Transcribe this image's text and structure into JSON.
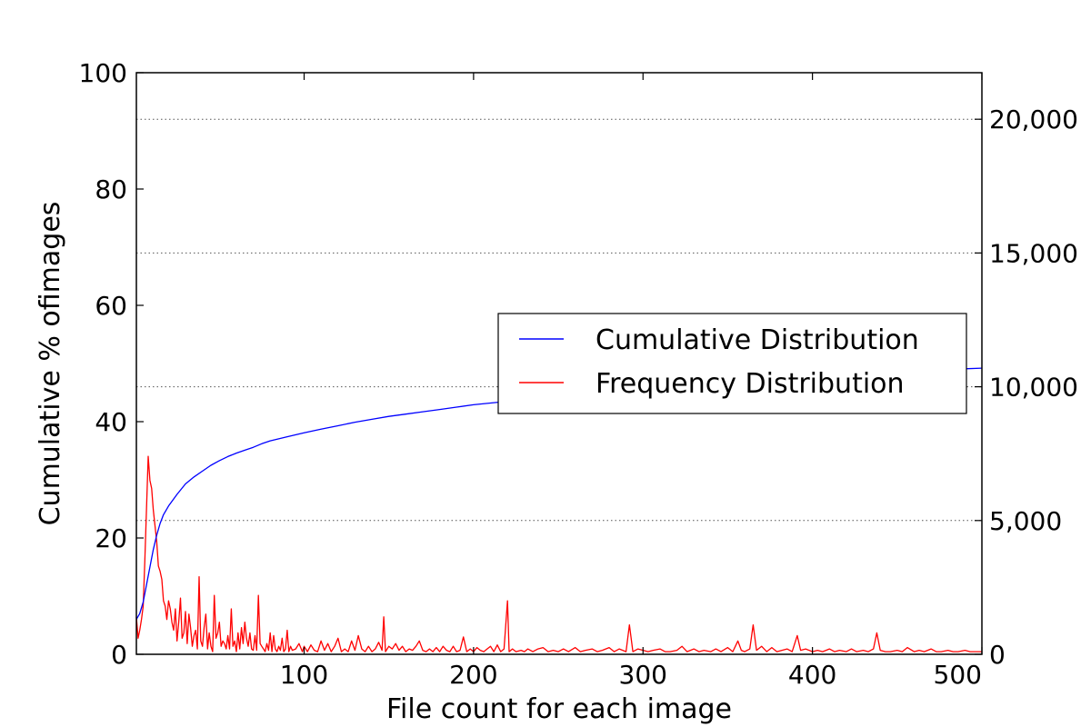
{
  "chart_data": {
    "type": "line",
    "xlabel": "File count for each image",
    "ylabel": "Cumulative % ofimages",
    "xlim": [
      1,
      500
    ],
    "ylim": [
      0,
      100
    ],
    "y2lim": [
      0,
      21739
    ],
    "xticks": [
      {
        "value": 100,
        "label": "100"
      },
      {
        "value": 200,
        "label": "200"
      },
      {
        "value": 300,
        "label": "300"
      },
      {
        "value": 400,
        "label": "400"
      },
      {
        "value": 500,
        "label": "500"
      }
    ],
    "yticks": [
      {
        "value": 0,
        "label": "0"
      },
      {
        "value": 20,
        "label": "20"
      },
      {
        "value": 40,
        "label": "40"
      },
      {
        "value": 60,
        "label": "60"
      },
      {
        "value": 80,
        "label": "80"
      },
      {
        "value": 100,
        "label": "100"
      }
    ],
    "y2ticks": [
      {
        "value": 0,
        "label": "0"
      },
      {
        "value": 5000,
        "label": "5,000"
      },
      {
        "value": 10000,
        "label": "10,000"
      },
      {
        "value": 15000,
        "label": "15,000"
      },
      {
        "value": 20000,
        "label": "20,000"
      }
    ],
    "grid": "horizontal dotted lines at right-axis ticks",
    "legend_position": "center-right",
    "series": [
      {
        "name": "Cumulative Distribution",
        "color": "#0000ff",
        "axis": "left",
        "points": [
          [
            1,
            6
          ],
          [
            3,
            7
          ],
          [
            5,
            9
          ],
          [
            7,
            12
          ],
          [
            9,
            15
          ],
          [
            11,
            18
          ],
          [
            13,
            20.5
          ],
          [
            15,
            22.5
          ],
          [
            17,
            24
          ],
          [
            20,
            25.5
          ],
          [
            25,
            27.5
          ],
          [
            30,
            29.3
          ],
          [
            35,
            30.5
          ],
          [
            40,
            31.5
          ],
          [
            45,
            32.5
          ],
          [
            50,
            33.3
          ],
          [
            55,
            34
          ],
          [
            60,
            34.6
          ],
          [
            65,
            35.1
          ],
          [
            70,
            35.6
          ],
          [
            75,
            36.2
          ],
          [
            80,
            36.7
          ],
          [
            90,
            37.4
          ],
          [
            100,
            38.1
          ],
          [
            110,
            38.7
          ],
          [
            120,
            39.3
          ],
          [
            130,
            39.9
          ],
          [
            140,
            40.4
          ],
          [
            150,
            40.9
          ],
          [
            160,
            41.3
          ],
          [
            170,
            41.7
          ],
          [
            180,
            42.1
          ],
          [
            190,
            42.5
          ],
          [
            200,
            42.9
          ],
          [
            210,
            43.2
          ],
          [
            220,
            43.5
          ],
          [
            230,
            43.8
          ],
          [
            240,
            44.1
          ],
          [
            250,
            44.4
          ],
          [
            260,
            44.7
          ],
          [
            270,
            45
          ],
          [
            280,
            45.3
          ],
          [
            300,
            45.8
          ],
          [
            320,
            46.3
          ],
          [
            340,
            46.8
          ],
          [
            360,
            47.2
          ],
          [
            380,
            47.6
          ],
          [
            400,
            48
          ],
          [
            420,
            48.3
          ],
          [
            440,
            48.6
          ],
          [
            460,
            48.8
          ],
          [
            480,
            49
          ],
          [
            490,
            49.1
          ],
          [
            500,
            49.2
          ]
        ]
      },
      {
        "name": "Frequency Distribution",
        "color": "#ff0000",
        "axis": "right",
        "points": [
          [
            1,
            1400
          ],
          [
            2,
            600
          ],
          [
            3,
            900
          ],
          [
            4,
            1300
          ],
          [
            5,
            1800
          ],
          [
            6,
            3500
          ],
          [
            7,
            5500
          ],
          [
            8,
            7400
          ],
          [
            9,
            6500
          ],
          [
            10,
            6200
          ],
          [
            11,
            5400
          ],
          [
            12,
            4800
          ],
          [
            13,
            4200
          ],
          [
            14,
            3300
          ],
          [
            15,
            3100
          ],
          [
            16,
            2800
          ],
          [
            17,
            2000
          ],
          [
            18,
            1800
          ],
          [
            19,
            1300
          ],
          [
            20,
            2000
          ],
          [
            21,
            1700
          ],
          [
            22,
            1200
          ],
          [
            23,
            900
          ],
          [
            24,
            1700
          ],
          [
            25,
            500
          ],
          [
            26,
            1200
          ],
          [
            27,
            2100
          ],
          [
            28,
            600
          ],
          [
            29,
            800
          ],
          [
            30,
            1600
          ],
          [
            31,
            400
          ],
          [
            32,
            1500
          ],
          [
            33,
            1000
          ],
          [
            34,
            300
          ],
          [
            35,
            700
          ],
          [
            36,
            900
          ],
          [
            37,
            200
          ],
          [
            38,
            2900
          ],
          [
            39,
            500
          ],
          [
            40,
            300
          ],
          [
            41,
            1000
          ],
          [
            42,
            1500
          ],
          [
            43,
            200
          ],
          [
            44,
            800
          ],
          [
            45,
            300
          ],
          [
            46,
            100
          ],
          [
            47,
            2200
          ],
          [
            48,
            600
          ],
          [
            49,
            800
          ],
          [
            50,
            1200
          ],
          [
            51,
            300
          ],
          [
            52,
            500
          ],
          [
            53,
            400
          ],
          [
            54,
            200
          ],
          [
            55,
            700
          ],
          [
            56,
            200
          ],
          [
            57,
            1700
          ],
          [
            58,
            300
          ],
          [
            59,
            500
          ],
          [
            60,
            100
          ],
          [
            61,
            800
          ],
          [
            62,
            200
          ],
          [
            63,
            1000
          ],
          [
            64,
            400
          ],
          [
            65,
            1200
          ],
          [
            66,
            600
          ],
          [
            67,
            300
          ],
          [
            68,
            800
          ],
          [
            69,
            200
          ],
          [
            70,
            150
          ],
          [
            71,
            700
          ],
          [
            72,
            150
          ],
          [
            73,
            2200
          ],
          [
            74,
            400
          ],
          [
            75,
            300
          ],
          [
            76,
            200
          ],
          [
            77,
            100
          ],
          [
            78,
            400
          ],
          [
            79,
            150
          ],
          [
            80,
            800
          ],
          [
            81,
            100
          ],
          [
            82,
            700
          ],
          [
            83,
            200
          ],
          [
            84,
            100
          ],
          [
            85,
            300
          ],
          [
            86,
            150
          ],
          [
            87,
            600
          ],
          [
            88,
            100
          ],
          [
            89,
            200
          ],
          [
            90,
            900
          ],
          [
            91,
            100
          ],
          [
            92,
            300
          ],
          [
            93,
            150
          ],
          [
            95,
            200
          ],
          [
            97,
            400
          ],
          [
            99,
            100
          ],
          [
            100,
            300
          ],
          [
            102,
            100
          ],
          [
            104,
            350
          ],
          [
            106,
            150
          ],
          [
            108,
            100
          ],
          [
            110,
            500
          ],
          [
            112,
            150
          ],
          [
            114,
            400
          ],
          [
            116,
            100
          ],
          [
            118,
            300
          ],
          [
            120,
            600
          ],
          [
            122,
            100
          ],
          [
            124,
            200
          ],
          [
            126,
            100
          ],
          [
            128,
            500
          ],
          [
            130,
            150
          ],
          [
            132,
            700
          ],
          [
            134,
            200
          ],
          [
            136,
            100
          ],
          [
            138,
            300
          ],
          [
            140,
            100
          ],
          [
            142,
            200
          ],
          [
            144,
            450
          ],
          [
            146,
            150
          ],
          [
            147,
            1400
          ],
          [
            148,
            100
          ],
          [
            150,
            300
          ],
          [
            152,
            200
          ],
          [
            154,
            400
          ],
          [
            156,
            150
          ],
          [
            158,
            300
          ],
          [
            160,
            100
          ],
          [
            162,
            200
          ],
          [
            164,
            150
          ],
          [
            166,
            300
          ],
          [
            168,
            500
          ],
          [
            170,
            150
          ],
          [
            172,
            100
          ],
          [
            174,
            200
          ],
          [
            176,
            100
          ],
          [
            178,
            250
          ],
          [
            180,
            100
          ],
          [
            182,
            300
          ],
          [
            184,
            150
          ],
          [
            186,
            100
          ],
          [
            188,
            300
          ],
          [
            190,
            100
          ],
          [
            192,
            150
          ],
          [
            194,
            650
          ],
          [
            196,
            100
          ],
          [
            198,
            200
          ],
          [
            200,
            100
          ],
          [
            202,
            250
          ],
          [
            204,
            150
          ],
          [
            206,
            100
          ],
          [
            208,
            200
          ],
          [
            210,
            300
          ],
          [
            212,
            100
          ],
          [
            214,
            350
          ],
          [
            216,
            100
          ],
          [
            218,
            200
          ],
          [
            220,
            2000
          ],
          [
            221,
            100
          ],
          [
            223,
            200
          ],
          [
            225,
            100
          ],
          [
            228,
            150
          ],
          [
            230,
            100
          ],
          [
            232,
            200
          ],
          [
            235,
            100
          ],
          [
            238,
            200
          ],
          [
            241,
            250
          ],
          [
            244,
            100
          ],
          [
            247,
            150
          ],
          [
            250,
            100
          ],
          [
            253,
            200
          ],
          [
            256,
            100
          ],
          [
            260,
            250
          ],
          [
            263,
            100
          ],
          [
            266,
            150
          ],
          [
            270,
            200
          ],
          [
            273,
            100
          ],
          [
            276,
            150
          ],
          [
            280,
            250
          ],
          [
            283,
            100
          ],
          [
            286,
            200
          ],
          [
            290,
            100
          ],
          [
            292,
            1100
          ],
          [
            294,
            100
          ],
          [
            297,
            200
          ],
          [
            300,
            150
          ],
          [
            303,
            100
          ],
          [
            306,
            150
          ],
          [
            310,
            200
          ],
          [
            313,
            100
          ],
          [
            316,
            100
          ],
          [
            320,
            150
          ],
          [
            323,
            300
          ],
          [
            326,
            100
          ],
          [
            330,
            200
          ],
          [
            333,
            100
          ],
          [
            336,
            150
          ],
          [
            340,
            100
          ],
          [
            343,
            200
          ],
          [
            346,
            100
          ],
          [
            350,
            250
          ],
          [
            353,
            100
          ],
          [
            356,
            500
          ],
          [
            358,
            150
          ],
          [
            360,
            100
          ],
          [
            363,
            200
          ],
          [
            365,
            1100
          ],
          [
            367,
            150
          ],
          [
            370,
            300
          ],
          [
            373,
            100
          ],
          [
            376,
            250
          ],
          [
            379,
            100
          ],
          [
            382,
            150
          ],
          [
            385,
            200
          ],
          [
            388,
            100
          ],
          [
            391,
            700
          ],
          [
            393,
            150
          ],
          [
            396,
            200
          ],
          [
            400,
            100
          ],
          [
            403,
            150
          ],
          [
            406,
            100
          ],
          [
            410,
            200
          ],
          [
            413,
            100
          ],
          [
            416,
            150
          ],
          [
            420,
            100
          ],
          [
            423,
            200
          ],
          [
            426,
            100
          ],
          [
            430,
            150
          ],
          [
            433,
            100
          ],
          [
            436,
            200
          ],
          [
            438,
            800
          ],
          [
            440,
            150
          ],
          [
            443,
            100
          ],
          [
            446,
            100
          ],
          [
            450,
            150
          ],
          [
            453,
            100
          ],
          [
            456,
            250
          ],
          [
            460,
            100
          ],
          [
            463,
            150
          ],
          [
            466,
            100
          ],
          [
            470,
            200
          ],
          [
            473,
            100
          ],
          [
            476,
            100
          ],
          [
            480,
            150
          ],
          [
            483,
            100
          ],
          [
            486,
            100
          ],
          [
            490,
            150
          ],
          [
            493,
            100
          ],
          [
            496,
            100
          ],
          [
            500,
            100
          ]
        ]
      }
    ]
  }
}
